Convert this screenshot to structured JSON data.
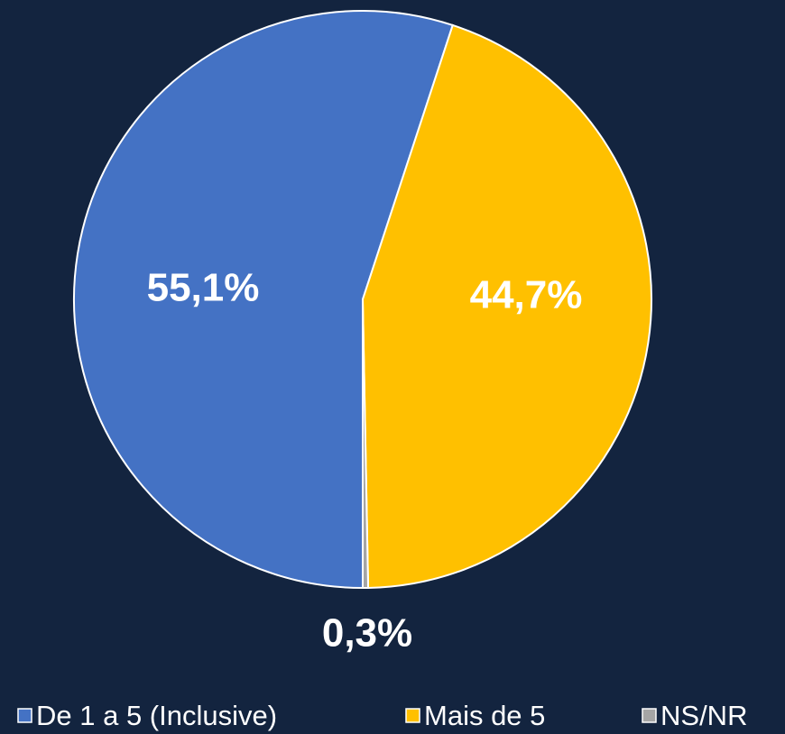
{
  "chart_data": {
    "type": "pie",
    "categories": [
      "De 1 a 5 (Inclusive)",
      "Mais de 5",
      "NS/NR"
    ],
    "values": [
      55.1,
      44.7,
      0.3
    ],
    "value_labels": [
      "55,1%",
      "44,7%",
      "0,3%"
    ],
    "colors": [
      "#4472c4",
      "#ffc000",
      "#a5a5a5"
    ],
    "legend": "bottom"
  }
}
